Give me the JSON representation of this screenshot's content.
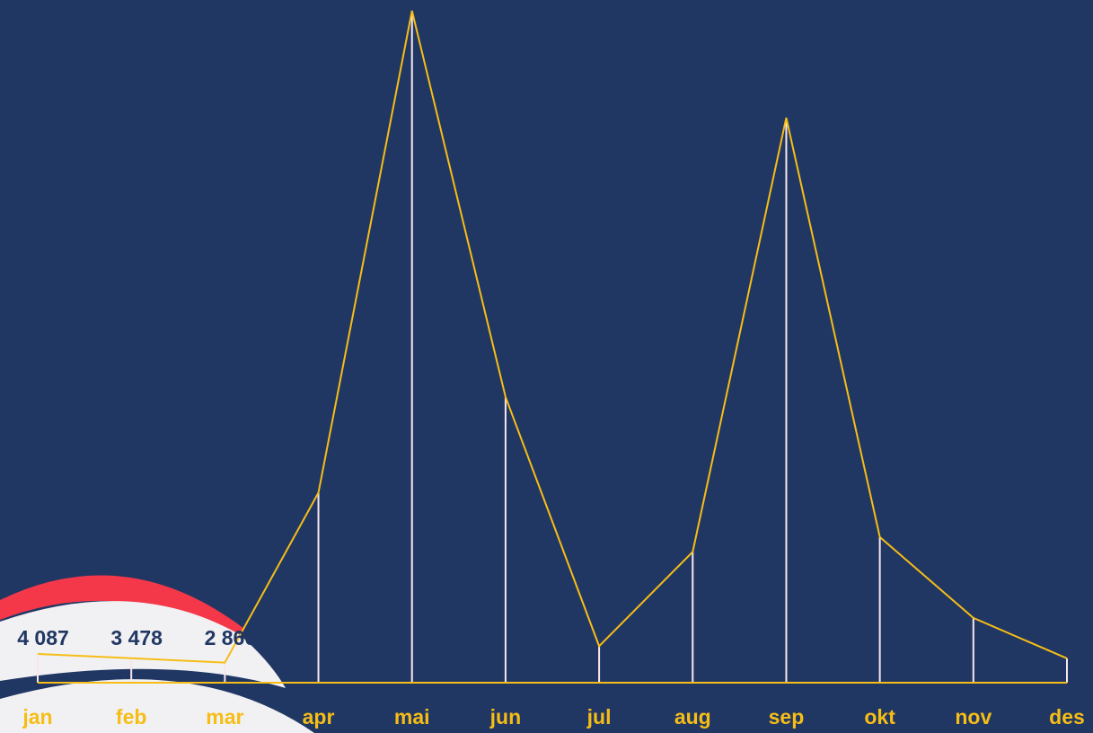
{
  "chart_data": {
    "type": "line",
    "categories": [
      "jan",
      "feb",
      "mar",
      "apr",
      "mai",
      "jun",
      "jul",
      "aug",
      "sep",
      "okt",
      "nov",
      "des"
    ],
    "values": [
      4087,
      3478,
      2860,
      27000,
      95500,
      40600,
      5200,
      18600,
      80300,
      20700,
      9200,
      3450
    ],
    "value_labels": [
      "4 087",
      "3 478",
      "2 860",
      null,
      null,
      null,
      null,
      null,
      null,
      null,
      null,
      null
    ],
    "color": "#f6bd16"
  }
}
